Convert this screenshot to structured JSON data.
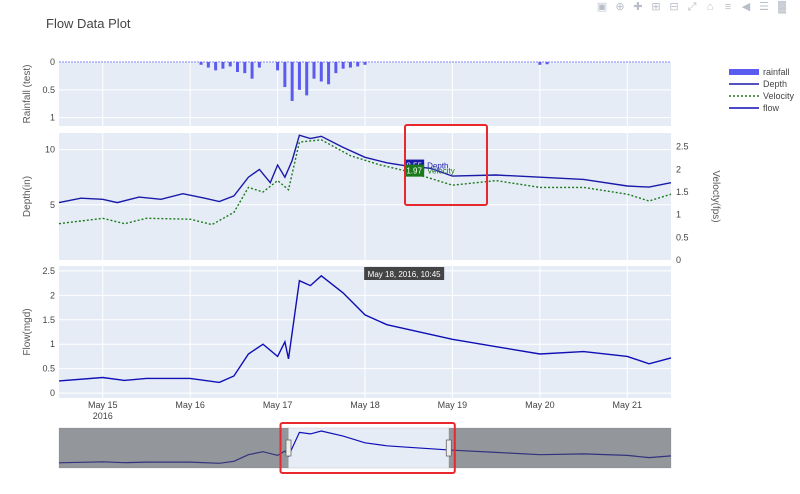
{
  "chart_data": {
    "type": "line",
    "title": "Flow Data Plot",
    "x_tick_labels": [
      "May 15\n2016",
      "May 16",
      "May 17",
      "May 18",
      "May 19",
      "May 20",
      "May 21"
    ],
    "x_range_days": [
      "2016-05-14 12:00",
      "2016-05-21 12:00"
    ],
    "panels": [
      {
        "name": "rainfall",
        "ylabel": "Rainfall (test)",
        "ylim": [
          0,
          1.15
        ],
        "y_reversed": true,
        "yticks": [
          "0",
          "0.5",
          "1"
        ],
        "series": [
          {
            "name": "rainfall",
            "type": "bar",
            "color": "#5b5bf0",
            "points": [
              [
                "2016-05-16 03:00",
                0.05
              ],
              [
                "2016-05-16 05:00",
                0.1
              ],
              [
                "2016-05-16 07:00",
                0.15
              ],
              [
                "2016-05-16 09:00",
                0.12
              ],
              [
                "2016-05-16 11:00",
                0.08
              ],
              [
                "2016-05-16 13:00",
                0.18
              ],
              [
                "2016-05-16 15:00",
                0.2
              ],
              [
                "2016-05-16 17:00",
                0.3
              ],
              [
                "2016-05-16 19:00",
                0.1
              ],
              [
                "2016-05-17 00:00",
                0.15
              ],
              [
                "2016-05-17 02:00",
                0.45
              ],
              [
                "2016-05-17 04:00",
                0.7
              ],
              [
                "2016-05-17 06:00",
                0.5
              ],
              [
                "2016-05-17 08:00",
                0.6
              ],
              [
                "2016-05-17 10:00",
                0.3
              ],
              [
                "2016-05-17 12:00",
                0.35
              ],
              [
                "2016-05-17 14:00",
                0.4
              ],
              [
                "2016-05-17 16:00",
                0.2
              ],
              [
                "2016-05-17 18:00",
                0.12
              ],
              [
                "2016-05-17 20:00",
                0.1
              ],
              [
                "2016-05-17 22:00",
                0.08
              ],
              [
                "2016-05-18 00:00",
                0.05
              ],
              [
                "2016-05-20 00:00",
                0.05
              ],
              [
                "2016-05-20 02:00",
                0.04
              ]
            ]
          }
        ]
      },
      {
        "name": "depth_velocity",
        "ylabel": "Depth(in)",
        "ylim": [
          0,
          11.5
        ],
        "yticks": [
          "5",
          "10"
        ],
        "y2label": "Velocty(fps)",
        "y2lim": [
          0,
          2.8
        ],
        "y2ticks": [
          "0",
          "0.5",
          "1",
          "1.5",
          "2",
          "2.5"
        ],
        "series": [
          {
            "name": "Depth",
            "axis": "y",
            "color": "#1a1aa8",
            "dash": "solid",
            "points": [
              [
                "2016-05-14 12:00",
                5.2
              ],
              [
                "2016-05-14 18:00",
                5.6
              ],
              [
                "2016-05-15 00:00",
                5.5
              ],
              [
                "2016-05-15 04:00",
                5.2
              ],
              [
                "2016-05-15 10:00",
                5.7
              ],
              [
                "2016-05-15 16:00",
                5.5
              ],
              [
                "2016-05-15 22:00",
                6.0
              ],
              [
                "2016-05-16 04:00",
                5.6
              ],
              [
                "2016-05-16 08:00",
                5.3
              ],
              [
                "2016-05-16 12:00",
                5.8
              ],
              [
                "2016-05-16 16:00",
                7.5
              ],
              [
                "2016-05-16 19:00",
                8.2
              ],
              [
                "2016-05-16 22:00",
                7.0
              ],
              [
                "2016-05-17 00:00",
                8.6
              ],
              [
                "2016-05-17 02:00",
                7.5
              ],
              [
                "2016-05-17 04:00",
                9.0
              ],
              [
                "2016-05-17 06:00",
                11.3
              ],
              [
                "2016-05-17 09:00",
                11.0
              ],
              [
                "2016-05-17 12:00",
                11.2
              ],
              [
                "2016-05-17 18:00",
                10.2
              ],
              [
                "2016-05-18 00:00",
                9.3
              ],
              [
                "2016-05-18 06:00",
                8.8
              ],
              [
                "2016-05-18 10:45",
                8.55
              ],
              [
                "2016-05-18 18:00",
                8.3
              ],
              [
                "2016-05-19 00:00",
                7.6
              ],
              [
                "2016-05-19 12:00",
                7.7
              ],
              [
                "2016-05-20 00:00",
                7.5
              ],
              [
                "2016-05-20 12:00",
                7.3
              ],
              [
                "2016-05-21 00:00",
                6.7
              ],
              [
                "2016-05-21 06:00",
                6.6
              ],
              [
                "2016-05-21 12:00",
                7.0
              ]
            ]
          },
          {
            "name": "Velocity",
            "axis": "y2",
            "color": "#1a7a1a",
            "dash": "dot",
            "points": [
              [
                "2016-05-14 12:00",
                0.8
              ],
              [
                "2016-05-15 00:00",
                0.92
              ],
              [
                "2016-05-15 06:00",
                0.8
              ],
              [
                "2016-05-15 12:00",
                0.92
              ],
              [
                "2016-05-16 00:00",
                0.9
              ],
              [
                "2016-05-16 06:00",
                0.78
              ],
              [
                "2016-05-16 12:00",
                1.05
              ],
              [
                "2016-05-16 16:00",
                1.6
              ],
              [
                "2016-05-16 20:00",
                1.5
              ],
              [
                "2016-05-17 00:00",
                1.75
              ],
              [
                "2016-05-17 03:00",
                1.55
              ],
              [
                "2016-05-17 06:00",
                2.6
              ],
              [
                "2016-05-17 12:00",
                2.65
              ],
              [
                "2016-05-17 20:00",
                2.3
              ],
              [
                "2016-05-18 04:00",
                2.1
              ],
              [
                "2016-05-18 10:45",
                1.97
              ],
              [
                "2016-05-18 18:00",
                1.8
              ],
              [
                "2016-05-19 00:00",
                1.65
              ],
              [
                "2016-05-19 12:00",
                1.75
              ],
              [
                "2016-05-20 00:00",
                1.6
              ],
              [
                "2016-05-20 12:00",
                1.6
              ],
              [
                "2016-05-21 00:00",
                1.45
              ],
              [
                "2016-05-21 06:00",
                1.3
              ],
              [
                "2016-05-21 12:00",
                1.45
              ]
            ]
          }
        ]
      },
      {
        "name": "flow",
        "ylabel": "Flow(mgd)",
        "ylim": [
          -0.1,
          2.6
        ],
        "yticks": [
          "0",
          "0.5",
          "1",
          "1.5",
          "2",
          "2.5"
        ],
        "series": [
          {
            "name": "flow",
            "axis": "y",
            "color": "#0f0fb5",
            "dash": "solid",
            "points": [
              [
                "2016-05-14 12:00",
                0.25
              ],
              [
                "2016-05-15 00:00",
                0.32
              ],
              [
                "2016-05-15 06:00",
                0.26
              ],
              [
                "2016-05-15 12:00",
                0.3
              ],
              [
                "2016-05-16 00:00",
                0.3
              ],
              [
                "2016-05-16 08:00",
                0.22
              ],
              [
                "2016-05-16 12:00",
                0.35
              ],
              [
                "2016-05-16 16:00",
                0.8
              ],
              [
                "2016-05-16 20:00",
                1.0
              ],
              [
                "2016-05-17 00:00",
                0.75
              ],
              [
                "2016-05-17 02:00",
                1.05
              ],
              [
                "2016-05-17 03:00",
                0.7
              ],
              [
                "2016-05-17 06:00",
                2.3
              ],
              [
                "2016-05-17 09:00",
                2.2
              ],
              [
                "2016-05-17 12:00",
                2.4
              ],
              [
                "2016-05-17 18:00",
                2.05
              ],
              [
                "2016-05-18 00:00",
                1.6
              ],
              [
                "2016-05-18 06:00",
                1.4
              ],
              [
                "2016-05-18 12:00",
                1.3
              ],
              [
                "2016-05-19 00:00",
                1.1
              ],
              [
                "2016-05-19 12:00",
                0.95
              ],
              [
                "2016-05-20 00:00",
                0.8
              ],
              [
                "2016-05-20 12:00",
                0.85
              ],
              [
                "2016-05-21 00:00",
                0.75
              ],
              [
                "2016-05-21 06:00",
                0.6
              ],
              [
                "2016-05-21 12:00",
                0.72
              ]
            ]
          }
        ]
      }
    ],
    "legend": {
      "position": "right",
      "entries": [
        {
          "label": "rainfall",
          "kind": "bar",
          "color": "#5b5bf0"
        },
        {
          "label": "Depth",
          "kind": "line",
          "color": "#1a1aa8",
          "dash": "solid"
        },
        {
          "label": "Velocity",
          "kind": "line",
          "color": "#1a7a1a",
          "dash": "dot"
        },
        {
          "label": "flow",
          "kind": "line",
          "color": "#0f0fb5",
          "dash": "solid"
        }
      ]
    },
    "hover": {
      "x_label": "May 18, 2016, 10:45",
      "items": [
        {
          "value": "8.55",
          "name": "Depth",
          "color": "#1a1aa8"
        },
        {
          "value": "1.97",
          "name": "Velocity",
          "color": "#1a7a1a"
        }
      ]
    },
    "range_slider": {
      "selected_range": [
        "2016-05-17 03:00",
        "2016-05-18 23:00"
      ],
      "highlight_color": "#e8282c"
    },
    "grid": true,
    "plot_background": "#e5ecf6"
  },
  "toolbar": {
    "icons": [
      "camera-icon",
      "zoom-icon",
      "pan-icon",
      "zoom-in-icon",
      "zoom-out-icon",
      "autoscale-icon",
      "reset-axes-icon",
      "spike-lines-icon",
      "hover-closest-icon",
      "hover-compare-icon",
      "plotly-logo-icon"
    ]
  }
}
